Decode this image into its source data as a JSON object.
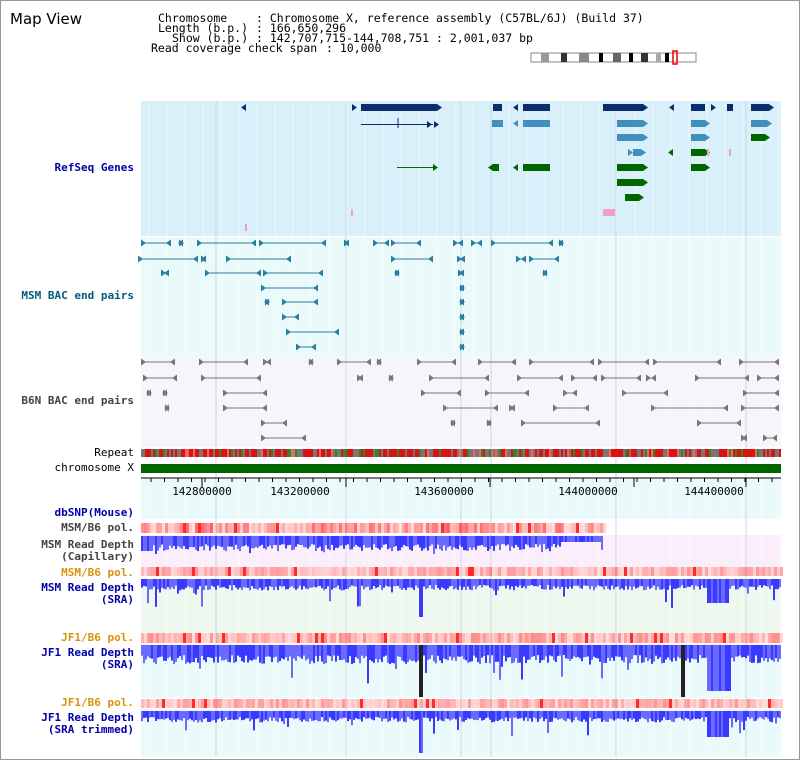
{
  "title": "Map View",
  "header": {
    "chromosome_label": "Chromosome",
    "chromosome_value": ": Chromosome X, reference assembly (C57BL/6J) (Build 37)",
    "length_label": "Length (b.p.)",
    "length_value": ": 166,650,296",
    "show_label": "Show (b.p.)",
    "show_value": ": 142,707,715-144,708,751 : 2,001,037 bp",
    "coverage_label": "Read coverage check span",
    "coverage_value": ": 10,000"
  },
  "tracks": {
    "refseq": "RefSeq Genes",
    "msm_bac": "MSM BAC end pairs",
    "b6n_bac": "B6N BAC end pairs",
    "repeat": "Repeat",
    "chrom": "chromosome X",
    "dbsnp": "dbSNP(Mouse)",
    "msm_b6_pol_1": "MSM/B6 pol.",
    "msm_rd_cap_1": "MSM Read Depth",
    "msm_rd_cap_2": "(Capillary)",
    "msm_b6_pol_2": "MSM/B6 pol.",
    "msm_rd_sra_1": "MSM Read Depth",
    "msm_rd_sra_2": "(SRA)",
    "jf1_b6_pol_1": "JF1/B6 pol.",
    "jf1_rd_sra_1": "JF1 Read Depth",
    "jf1_rd_sra_2": "(SRA)",
    "jf1_b6_pol_2": "JF1/B6 pol.",
    "jf1_rd_trim_1": "JF1 Read Depth",
    "jf1_rd_trim_2": "(SRA trimmed)"
  },
  "axis": {
    "ticks": [
      "142800000",
      "143200000",
      "143600000",
      "144000000",
      "144400000"
    ]
  },
  "colors": {
    "refseq_bg": "#d9eff9",
    "bac_bg": "#eafafa",
    "gene_navy": "#0a2d6e",
    "gene_steel": "#3f8fbf",
    "gene_green": "#006600",
    "chrom_green": "#006600",
    "depth_blue": "#2222ee",
    "pol_red": "#ff5555"
  }
}
